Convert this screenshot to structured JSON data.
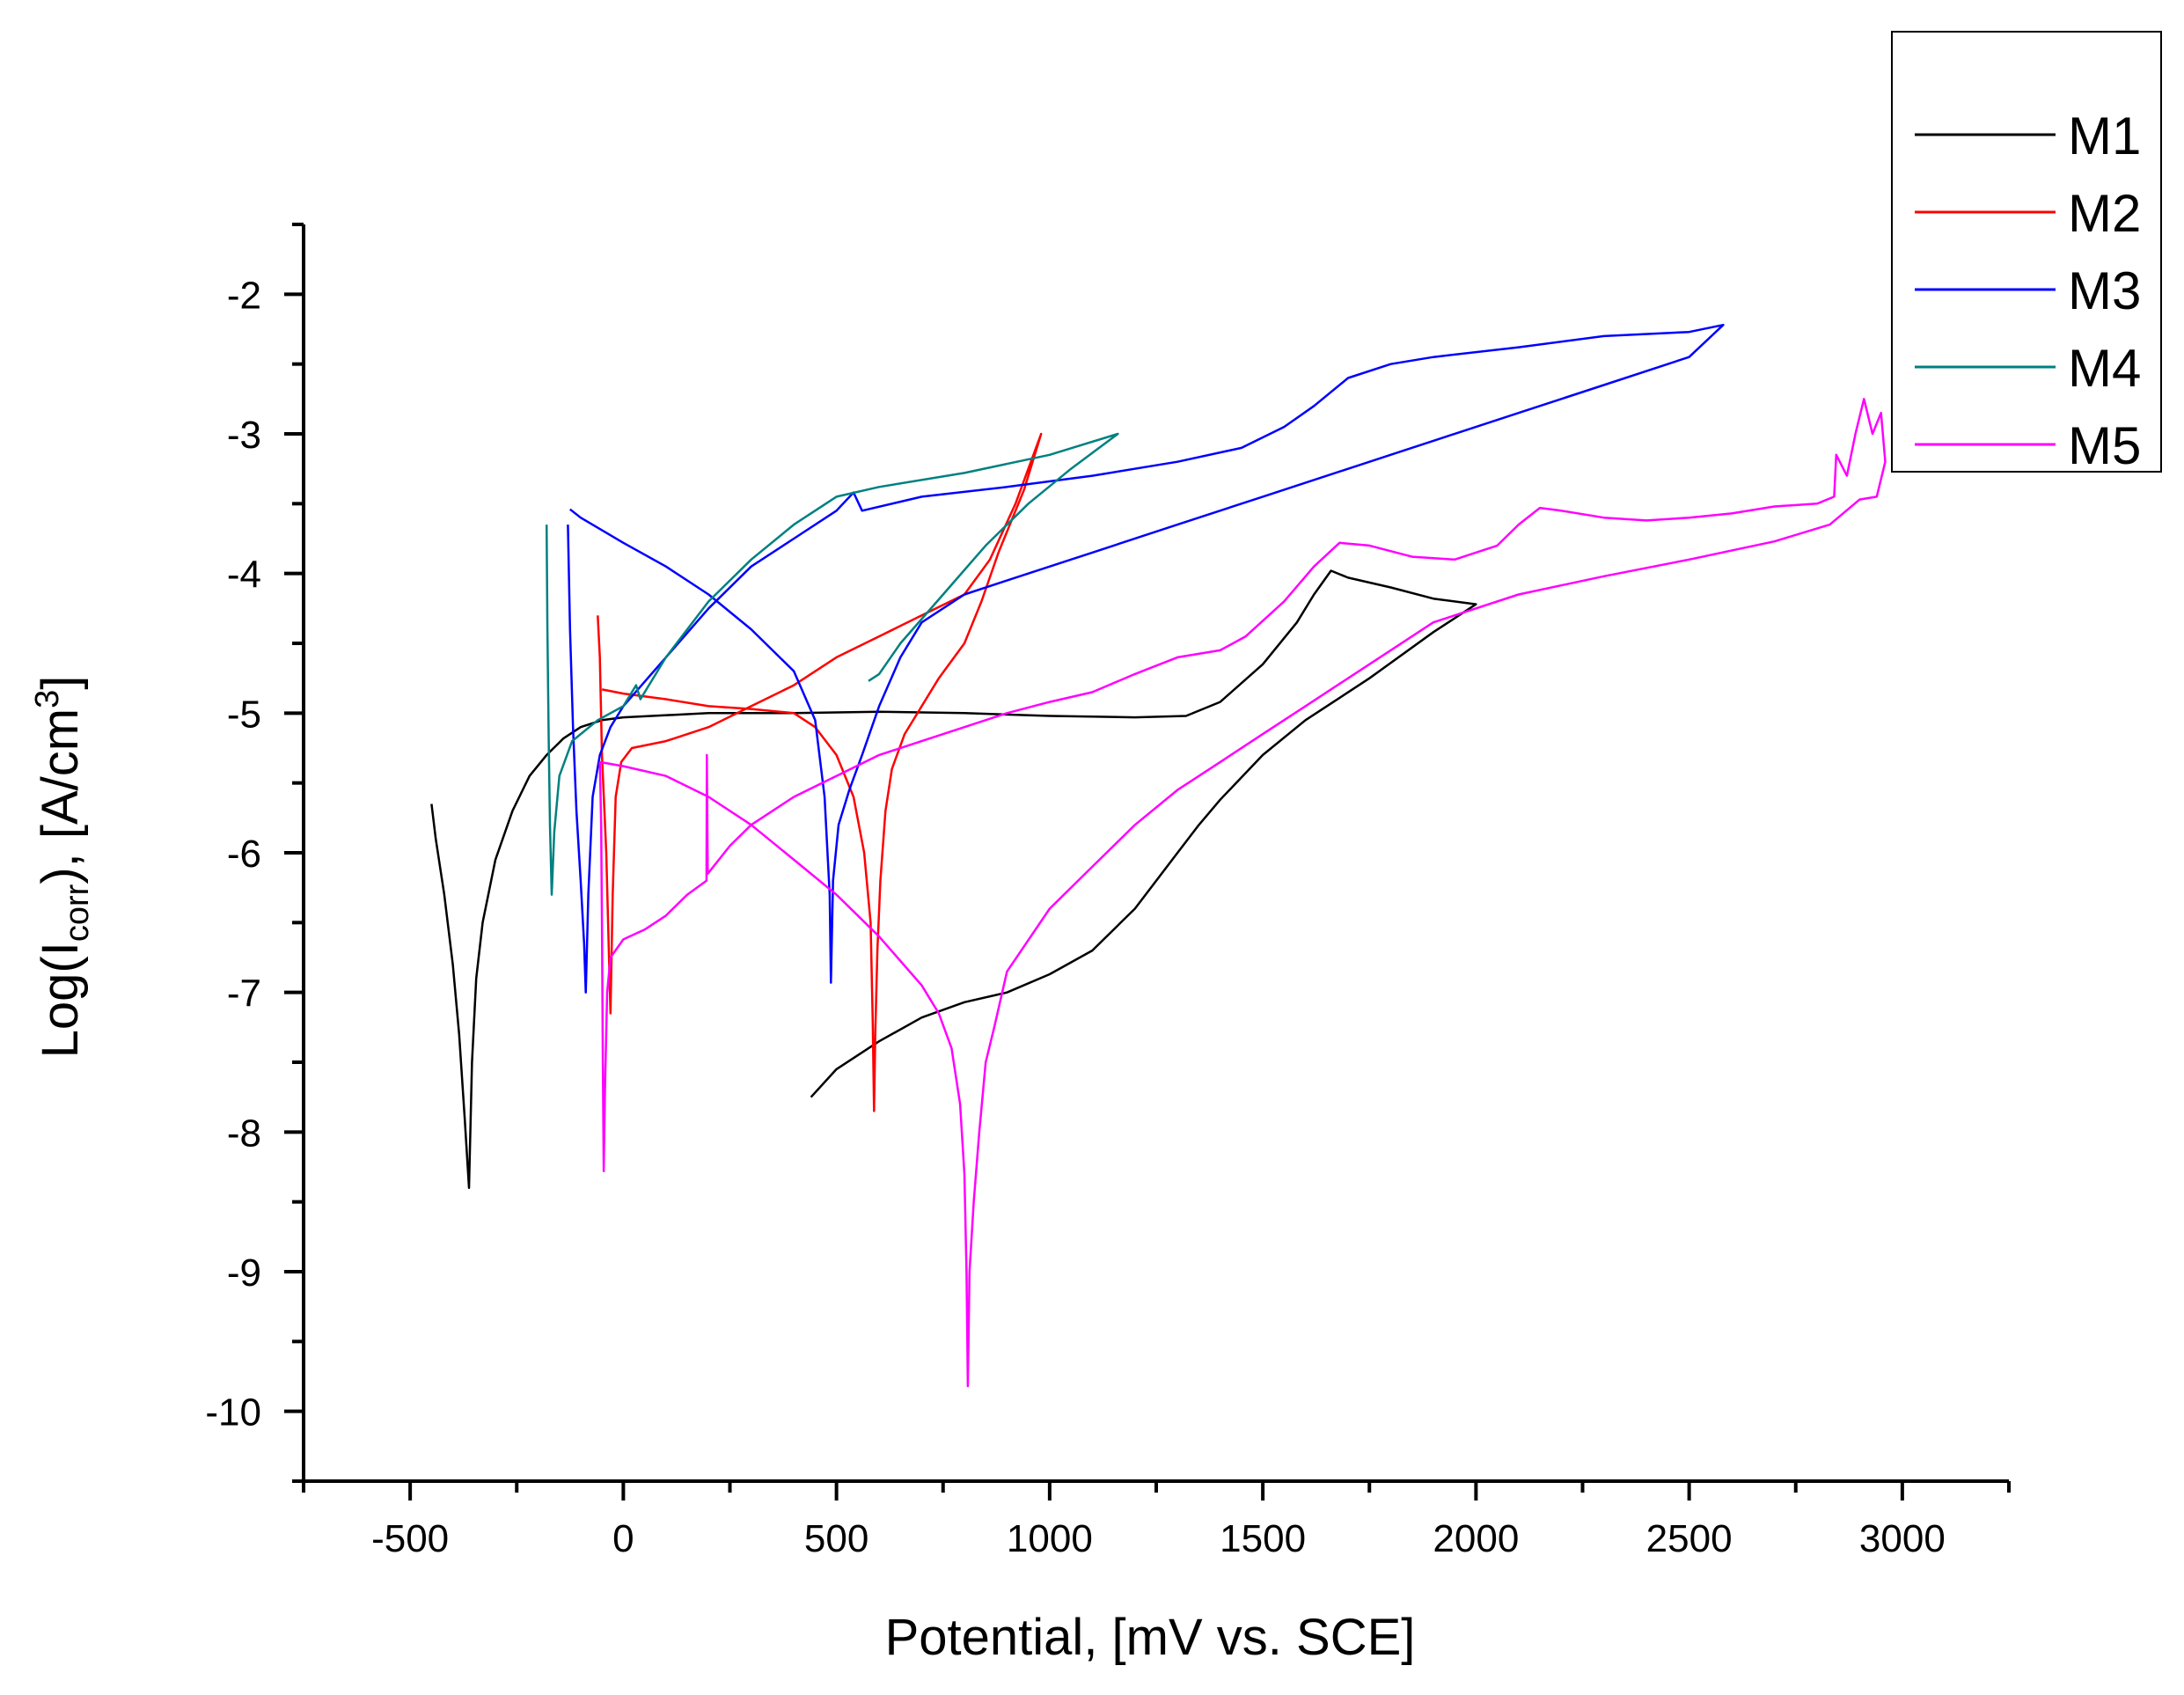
{
  "chart_data": {
    "type": "line",
    "title": "",
    "xlabel": "Potential, [mV vs. SCE]",
    "ylabel": {
      "prefix": "Log(I",
      "sub": "corr",
      "mid": "), [A/cm",
      "sup": "3",
      "suffix": "]"
    },
    "xlim": [
      -750,
      3250
    ],
    "ylim": [
      -10.5,
      -1.5
    ],
    "x_ticks": [
      -500,
      0,
      500,
      1000,
      1500,
      2000,
      2500,
      3000
    ],
    "x_tick_labels": [
      "-500",
      "0",
      "500",
      "1000",
      "1500",
      "2000",
      "2500",
      "3000"
    ],
    "y_ticks": [
      -2,
      -3,
      -4,
      -5,
      -6,
      -7,
      -8,
      -9,
      -10
    ],
    "y_tick_labels": [
      "-2",
      "-3",
      "-4",
      "-5",
      "-6",
      "-7",
      "-8",
      "-9",
      "-10"
    ],
    "legend_position": "top-right",
    "series": [
      {
        "name": "M1",
        "color": "#000000",
        "points": [
          [
            -450,
            -5.65
          ],
          [
            -440,
            -5.9
          ],
          [
            -420,
            -6.3
          ],
          [
            -400,
            -6.8
          ],
          [
            -385,
            -7.3
          ],
          [
            -372,
            -7.9
          ],
          [
            -362,
            -8.4
          ],
          [
            -355,
            -7.5
          ],
          [
            -345,
            -6.9
          ],
          [
            -330,
            -6.5
          ],
          [
            -300,
            -6.05
          ],
          [
            -260,
            -5.7
          ],
          [
            -220,
            -5.45
          ],
          [
            -180,
            -5.3
          ],
          [
            -140,
            -5.18
          ],
          [
            -100,
            -5.1
          ],
          [
            -50,
            -5.05
          ],
          [
            0,
            -5.03
          ],
          [
            200,
            -5.0
          ],
          [
            400,
            -5.0
          ],
          [
            600,
            -4.99
          ],
          [
            800,
            -5.0
          ],
          [
            1000,
            -5.02
          ],
          [
            1200,
            -5.03
          ],
          [
            1320,
            -5.02
          ],
          [
            1400,
            -4.92
          ],
          [
            1500,
            -4.65
          ],
          [
            1580,
            -4.35
          ],
          [
            1620,
            -4.15
          ],
          [
            1660,
            -3.98
          ],
          [
            1700,
            -4.03
          ],
          [
            1800,
            -4.1
          ],
          [
            1900,
            -4.18
          ],
          [
            2000,
            -4.22
          ],
          [
            1900,
            -4.42
          ],
          [
            1750,
            -4.75
          ],
          [
            1600,
            -5.05
          ],
          [
            1500,
            -5.3
          ],
          [
            1400,
            -5.62
          ],
          [
            1350,
            -5.8
          ],
          [
            1300,
            -6.0
          ],
          [
            1200,
            -6.4
          ],
          [
            1100,
            -6.7
          ],
          [
            1000,
            -6.87
          ],
          [
            900,
            -7.0
          ],
          [
            800,
            -7.07
          ],
          [
            700,
            -7.18
          ],
          [
            600,
            -7.35
          ],
          [
            500,
            -7.55
          ],
          [
            440,
            -7.75
          ]
        ]
      },
      {
        "name": "M2",
        "color": "#ff0000",
        "points": [
          [
            -60,
            -4.3
          ],
          [
            -55,
            -4.6
          ],
          [
            -50,
            -5.3
          ],
          [
            -40,
            -6.0
          ],
          [
            -34,
            -6.7
          ],
          [
            -30,
            -7.15
          ],
          [
            -25,
            -6.3
          ],
          [
            -18,
            -5.6
          ],
          [
            -5,
            -5.35
          ],
          [
            20,
            -5.25
          ],
          [
            100,
            -5.2
          ],
          [
            200,
            -5.1
          ],
          [
            300,
            -4.95
          ],
          [
            400,
            -4.8
          ],
          [
            500,
            -4.6
          ],
          [
            600,
            -4.45
          ],
          [
            700,
            -4.3
          ],
          [
            800,
            -4.15
          ],
          [
            860,
            -3.9
          ],
          [
            920,
            -3.5
          ],
          [
            980,
            -3.0
          ],
          [
            940,
            -3.4
          ],
          [
            880,
            -3.85
          ],
          [
            840,
            -4.2
          ],
          [
            800,
            -4.5
          ],
          [
            740,
            -4.75
          ],
          [
            700,
            -4.95
          ],
          [
            660,
            -5.15
          ],
          [
            630,
            -5.4
          ],
          [
            615,
            -5.7
          ],
          [
            603,
            -6.2
          ],
          [
            596,
            -6.7
          ],
          [
            591,
            -7.3
          ],
          [
            588,
            -7.85
          ],
          [
            585,
            -7.2
          ],
          [
            580,
            -6.5
          ],
          [
            565,
            -6.0
          ],
          [
            540,
            -5.6
          ],
          [
            500,
            -5.3
          ],
          [
            450,
            -5.1
          ],
          [
            400,
            -5.0
          ],
          [
            300,
            -4.97
          ],
          [
            200,
            -4.95
          ],
          [
            100,
            -4.9
          ],
          [
            0,
            -4.86
          ],
          [
            -50,
            -4.83
          ]
        ]
      },
      {
        "name": "M3",
        "color": "#0000ff",
        "points": [
          [
            -130,
            -3.65
          ],
          [
            -125,
            -4.4
          ],
          [
            -118,
            -5.1
          ],
          [
            -110,
            -5.7
          ],
          [
            -100,
            -6.2
          ],
          [
            -92,
            -6.65
          ],
          [
            -88,
            -7.0
          ],
          [
            -82,
            -6.3
          ],
          [
            -72,
            -5.6
          ],
          [
            -55,
            -5.3
          ],
          [
            -30,
            -5.1
          ],
          [
            0,
            -4.95
          ],
          [
            100,
            -4.6
          ],
          [
            200,
            -4.25
          ],
          [
            300,
            -3.95
          ],
          [
            400,
            -3.75
          ],
          [
            500,
            -3.55
          ],
          [
            540,
            -3.42
          ],
          [
            560,
            -3.55
          ],
          [
            700,
            -3.45
          ],
          [
            900,
            -3.38
          ],
          [
            1100,
            -3.3
          ],
          [
            1300,
            -3.2
          ],
          [
            1450,
            -3.1
          ],
          [
            1550,
            -2.95
          ],
          [
            1620,
            -2.8
          ],
          [
            1700,
            -2.6
          ],
          [
            1800,
            -2.5
          ],
          [
            1900,
            -2.45
          ],
          [
            2100,
            -2.38
          ],
          [
            2300,
            -2.3
          ],
          [
            2500,
            -2.27
          ],
          [
            2580,
            -2.22
          ],
          [
            2500,
            -2.45
          ],
          [
            2300,
            -2.65
          ],
          [
            2100,
            -2.85
          ],
          [
            1900,
            -3.05
          ],
          [
            1700,
            -3.25
          ],
          [
            1500,
            -3.45
          ],
          [
            1300,
            -3.65
          ],
          [
            1100,
            -3.85
          ],
          [
            900,
            -4.05
          ],
          [
            800,
            -4.15
          ],
          [
            700,
            -4.35
          ],
          [
            650,
            -4.6
          ],
          [
            600,
            -4.95
          ],
          [
            560,
            -5.3
          ],
          [
            530,
            -5.55
          ],
          [
            505,
            -5.8
          ],
          [
            492,
            -6.2
          ],
          [
            487,
            -6.93
          ],
          [
            484,
            -6.3
          ],
          [
            472,
            -5.6
          ],
          [
            450,
            -5.05
          ],
          [
            400,
            -4.7
          ],
          [
            300,
            -4.4
          ],
          [
            200,
            -4.15
          ],
          [
            100,
            -3.95
          ],
          [
            0,
            -3.78
          ],
          [
            -100,
            -3.6
          ],
          [
            -125,
            -3.54
          ]
        ]
      },
      {
        "name": "M4",
        "color": "#008080",
        "points": [
          [
            -180,
            -3.65
          ],
          [
            -178,
            -4.4
          ],
          [
            -175,
            -5.2
          ],
          [
            -172,
            -5.8
          ],
          [
            -168,
            -6.3
          ],
          [
            -162,
            -5.85
          ],
          [
            -150,
            -5.45
          ],
          [
            -120,
            -5.2
          ],
          [
            -60,
            -5.05
          ],
          [
            0,
            -4.95
          ],
          [
            30,
            -4.8
          ],
          [
            40,
            -4.9
          ],
          [
            100,
            -4.6
          ],
          [
            200,
            -4.2
          ],
          [
            300,
            -3.9
          ],
          [
            400,
            -3.65
          ],
          [
            500,
            -3.45
          ],
          [
            600,
            -3.38
          ],
          [
            800,
            -3.28
          ],
          [
            1000,
            -3.15
          ],
          [
            1160,
            -3.0
          ],
          [
            1050,
            -3.25
          ],
          [
            950,
            -3.5
          ],
          [
            850,
            -3.8
          ],
          [
            750,
            -4.15
          ],
          [
            650,
            -4.5
          ],
          [
            600,
            -4.72
          ],
          [
            575,
            -4.77
          ]
        ]
      },
      {
        "name": "M5",
        "color": "#ff00ff",
        "points": [
          [
            -55,
            -5.35
          ],
          [
            -52,
            -5.8
          ],
          [
            -50,
            -6.5
          ],
          [
            -48,
            -7.5
          ],
          [
            -46,
            -8.28
          ],
          [
            -43,
            -7.7
          ],
          [
            -38,
            -7.0
          ],
          [
            -30,
            -6.75
          ],
          [
            0,
            -6.62
          ],
          [
            50,
            -6.55
          ],
          [
            100,
            -6.45
          ],
          [
            150,
            -6.3
          ],
          [
            195,
            -6.2
          ],
          [
            196,
            -5.3
          ],
          [
            198,
            -6.15
          ],
          [
            250,
            -5.95
          ],
          [
            300,
            -5.8
          ],
          [
            400,
            -5.6
          ],
          [
            500,
            -5.45
          ],
          [
            600,
            -5.3
          ],
          [
            700,
            -5.2
          ],
          [
            800,
            -5.1
          ],
          [
            900,
            -5.0
          ],
          [
            1000,
            -4.92
          ],
          [
            1100,
            -4.85
          ],
          [
            1200,
            -4.72
          ],
          [
            1300,
            -4.6
          ],
          [
            1400,
            -4.55
          ],
          [
            1460,
            -4.45
          ],
          [
            1550,
            -4.2
          ],
          [
            1620,
            -3.95
          ],
          [
            1680,
            -3.78
          ],
          [
            1750,
            -3.8
          ],
          [
            1850,
            -3.88
          ],
          [
            1950,
            -3.9
          ],
          [
            2050,
            -3.8
          ],
          [
            2100,
            -3.65
          ],
          [
            2150,
            -3.53
          ],
          [
            2200,
            -3.55
          ],
          [
            2300,
            -3.6
          ],
          [
            2400,
            -3.62
          ],
          [
            2500,
            -3.6
          ],
          [
            2600,
            -3.57
          ],
          [
            2700,
            -3.52
          ],
          [
            2800,
            -3.5
          ],
          [
            2840,
            -3.45
          ],
          [
            2845,
            -3.15
          ],
          [
            2870,
            -3.3
          ],
          [
            2890,
            -3.0
          ],
          [
            2910,
            -2.75
          ],
          [
            2930,
            -3.0
          ],
          [
            2950,
            -2.85
          ],
          [
            2960,
            -3.2
          ],
          [
            2940,
            -3.45
          ],
          [
            2900,
            -3.47
          ],
          [
            2830,
            -3.65
          ],
          [
            2700,
            -3.77
          ],
          [
            2500,
            -3.9
          ],
          [
            2300,
            -4.02
          ],
          [
            2100,
            -4.15
          ],
          [
            1900,
            -4.35
          ],
          [
            1800,
            -4.55
          ],
          [
            1700,
            -4.75
          ],
          [
            1600,
            -4.95
          ],
          [
            1500,
            -5.15
          ],
          [
            1400,
            -5.35
          ],
          [
            1300,
            -5.55
          ],
          [
            1200,
            -5.8
          ],
          [
            1100,
            -6.1
          ],
          [
            1000,
            -6.4
          ],
          [
            900,
            -6.85
          ],
          [
            870,
            -7.25
          ],
          [
            850,
            -7.5
          ],
          [
            835,
            -8.0
          ],
          [
            822,
            -8.5
          ],
          [
            812,
            -9.0
          ],
          [
            808,
            -9.82
          ],
          [
            805,
            -9.0
          ],
          [
            800,
            -8.3
          ],
          [
            790,
            -7.8
          ],
          [
            770,
            -7.4
          ],
          [
            740,
            -7.15
          ],
          [
            700,
            -6.95
          ],
          [
            600,
            -6.6
          ],
          [
            500,
            -6.3
          ],
          [
            400,
            -6.05
          ],
          [
            300,
            -5.8
          ],
          [
            200,
            -5.6
          ],
          [
            100,
            -5.45
          ],
          [
            0,
            -5.38
          ],
          [
            -55,
            -5.35
          ]
        ]
      }
    ]
  }
}
